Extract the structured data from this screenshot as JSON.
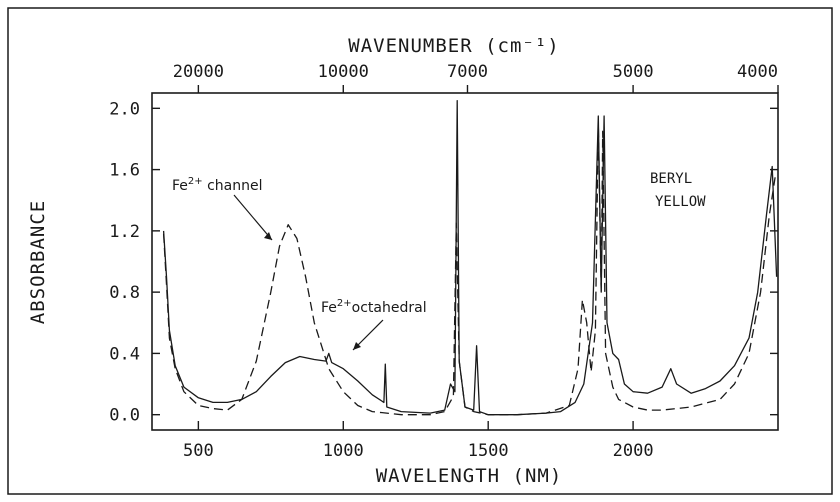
{
  "chart_data": {
    "type": "line",
    "title": "",
    "top_axis": {
      "label": "WAVENUMBER (cm⁻¹)",
      "ticks": [
        {
          "label": "20000",
          "wavenumber": 20000
        },
        {
          "label": "10000",
          "wavenumber": 10000
        },
        {
          "label": "7000",
          "wavenumber": 7000
        },
        {
          "label": "5000",
          "wavenumber": 5000
        },
        {
          "label": "4000",
          "wavenumber": 4000
        }
      ]
    },
    "xlabel": "WAVELENGTH (NM)",
    "ylabel": "ABSORBANCE",
    "xlim": [
      340,
      2500
    ],
    "ylim": [
      -0.1,
      2.1
    ],
    "x_ticks": [
      500,
      1000,
      1500,
      2000
    ],
    "y_ticks": [
      {
        "label": "0.0",
        "value": 0.0
      },
      {
        "label": "0.4",
        "value": 0.4
      },
      {
        "label": "0.8",
        "value": 0.8
      },
      {
        "label": "1.2",
        "value": 1.2
      },
      {
        "label": "1.6",
        "value": 1.6
      },
      {
        "label": "2.0",
        "value": 2.0
      }
    ],
    "grid": false,
    "annotations": [
      {
        "text": "Fe2+ channel"
      },
      {
        "text": "Fe2+ octahedral"
      },
      {
        "text": "BERYL"
      },
      {
        "text": "YELLOW"
      }
    ],
    "series": [
      {
        "style": "solid",
        "points": [
          [
            380,
            1.2
          ],
          [
            390,
            0.9
          ],
          [
            400,
            0.55
          ],
          [
            420,
            0.32
          ],
          [
            450,
            0.18
          ],
          [
            500,
            0.11
          ],
          [
            550,
            0.08
          ],
          [
            600,
            0.08
          ],
          [
            650,
            0.1
          ],
          [
            700,
            0.15
          ],
          [
            750,
            0.25
          ],
          [
            800,
            0.34
          ],
          [
            850,
            0.38
          ],
          [
            900,
            0.36
          ],
          [
            940,
            0.35
          ],
          [
            950,
            0.4
          ],
          [
            960,
            0.34
          ],
          [
            1000,
            0.3
          ],
          [
            1050,
            0.22
          ],
          [
            1100,
            0.13
          ],
          [
            1140,
            0.08
          ],
          [
            1145,
            0.33
          ],
          [
            1150,
            0.05
          ],
          [
            1200,
            0.02
          ],
          [
            1300,
            0.01
          ],
          [
            1350,
            0.03
          ],
          [
            1370,
            0.2
          ],
          [
            1385,
            0.15
          ],
          [
            1393,
            2.05
          ],
          [
            1400,
            0.35
          ],
          [
            1410,
            0.2
          ],
          [
            1420,
            0.05
          ],
          [
            1450,
            0.03
          ],
          [
            1460,
            0.45
          ],
          [
            1470,
            0.02
          ],
          [
            1500,
            0.0
          ],
          [
            1600,
            0.0
          ],
          [
            1700,
            0.01
          ],
          [
            1750,
            0.02
          ],
          [
            1800,
            0.08
          ],
          [
            1830,
            0.2
          ],
          [
            1860,
            0.6
          ],
          [
            1880,
            1.95
          ],
          [
            1890,
            0.8
          ],
          [
            1900,
            1.95
          ],
          [
            1910,
            0.6
          ],
          [
            1930,
            0.4
          ],
          [
            1950,
            0.36
          ],
          [
            1970,
            0.2
          ],
          [
            2000,
            0.15
          ],
          [
            2050,
            0.14
          ],
          [
            2100,
            0.18
          ],
          [
            2130,
            0.3
          ],
          [
            2150,
            0.2
          ],
          [
            2200,
            0.14
          ],
          [
            2250,
            0.17
          ],
          [
            2300,
            0.22
          ],
          [
            2350,
            0.32
          ],
          [
            2400,
            0.5
          ],
          [
            2430,
            0.8
          ],
          [
            2460,
            1.3
          ],
          [
            2480,
            1.62
          ],
          [
            2495,
            0.9
          ]
        ]
      },
      {
        "style": "dashed",
        "points": [
          [
            380,
            1.18
          ],
          [
            390,
            0.85
          ],
          [
            400,
            0.5
          ],
          [
            420,
            0.3
          ],
          [
            450,
            0.15
          ],
          [
            500,
            0.06
          ],
          [
            550,
            0.04
          ],
          [
            600,
            0.03
          ],
          [
            650,
            0.1
          ],
          [
            700,
            0.35
          ],
          [
            750,
            0.8
          ],
          [
            780,
            1.1
          ],
          [
            810,
            1.24
          ],
          [
            840,
            1.15
          ],
          [
            870,
            0.9
          ],
          [
            900,
            0.6
          ],
          [
            950,
            0.3
          ],
          [
            1000,
            0.15
          ],
          [
            1050,
            0.06
          ],
          [
            1100,
            0.02
          ],
          [
            1200,
            0.0
          ],
          [
            1300,
            0.0
          ],
          [
            1350,
            0.02
          ],
          [
            1380,
            0.12
          ],
          [
            1390,
            1.25
          ],
          [
            1400,
            0.35
          ],
          [
            1420,
            0.05
          ],
          [
            1450,
            0.02
          ],
          [
            1500,
            0.0
          ],
          [
            1600,
            0.0
          ],
          [
            1700,
            0.01
          ],
          [
            1780,
            0.06
          ],
          [
            1810,
            0.3
          ],
          [
            1825,
            0.75
          ],
          [
            1840,
            0.6
          ],
          [
            1855,
            0.28
          ],
          [
            1870,
            0.55
          ],
          [
            1880,
            1.9
          ],
          [
            1890,
            0.8
          ],
          [
            1895,
            1.85
          ],
          [
            1905,
            0.4
          ],
          [
            1930,
            0.18
          ],
          [
            1950,
            0.1
          ],
          [
            2000,
            0.05
          ],
          [
            2050,
            0.03
          ],
          [
            2100,
            0.03
          ],
          [
            2200,
            0.05
          ],
          [
            2300,
            0.1
          ],
          [
            2350,
            0.2
          ],
          [
            2400,
            0.4
          ],
          [
            2440,
            0.8
          ],
          [
            2470,
            1.3
          ],
          [
            2490,
            1.55
          ]
        ]
      }
    ]
  }
}
